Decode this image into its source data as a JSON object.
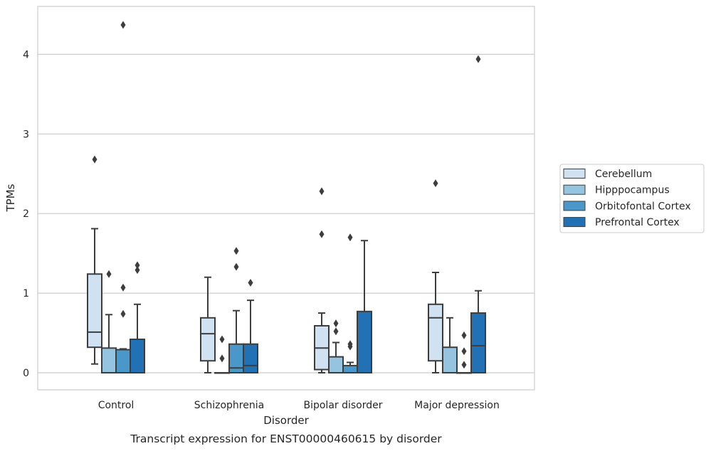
{
  "chart_data": {
    "type": "box",
    "caption": "Transcript expression for ENST00000460615 by disorder",
    "xlabel": "Disorder",
    "ylabel": "TPMs",
    "ylim": [
      -0.2,
      4.6
    ],
    "yticks": [
      "0",
      "1",
      "2",
      "3",
      "4"
    ],
    "ytick_values": [
      0,
      1,
      2,
      3,
      4
    ],
    "grid": "horizontal",
    "legend_position": "right",
    "categories": [
      "Control",
      "Schizophrenia",
      "Bipolar disorder",
      "Major depression"
    ],
    "series": [
      {
        "name": "Cerebellum",
        "color": "#d0e1f2",
        "boxes": [
          {
            "whislo": 0.11,
            "q1": 0.32,
            "med": 0.51,
            "q3": 1.24,
            "whishi": 1.81,
            "fliers": [
              2.68
            ]
          },
          {
            "whislo": 0.0,
            "q1": 0.15,
            "med": 0.49,
            "q3": 0.69,
            "whishi": 1.2,
            "fliers": []
          },
          {
            "whislo": 0.0,
            "q1": 0.04,
            "med": 0.31,
            "q3": 0.59,
            "whishi": 0.75,
            "fliers": [
              1.74,
              2.28
            ]
          },
          {
            "whislo": 0.0,
            "q1": 0.15,
            "med": 0.69,
            "q3": 0.86,
            "whishi": 1.26,
            "fliers": [
              2.38
            ]
          }
        ]
      },
      {
        "name": "Hipppocampus",
        "color": "#94c4df",
        "boxes": [
          {
            "whislo": 0.0,
            "q1": 0.0,
            "med": 0.0,
            "q3": 0.31,
            "whishi": 0.73,
            "fliers": [
              1.24
            ]
          },
          {
            "whislo": 0.0,
            "q1": 0.0,
            "med": 0.0,
            "q3": 0.0,
            "whishi": 0.0,
            "fliers": [
              0.18,
              0.42
            ]
          },
          {
            "whislo": 0.0,
            "q1": 0.0,
            "med": 0.0,
            "q3": 0.2,
            "whishi": 0.38,
            "fliers": [
              0.52,
              0.62
            ]
          },
          {
            "whislo": 0.0,
            "q1": 0.0,
            "med": 0.0,
            "q3": 0.32,
            "whishi": 0.69,
            "fliers": []
          }
        ]
      },
      {
        "name": "Orbitofontal Cortex",
        "color": "#4a98c9",
        "boxes": [
          {
            "whislo": 0.0,
            "q1": 0.0,
            "med": 0.0,
            "q3": 0.29,
            "whishi": 0.3,
            "fliers": [
              0.74,
              1.07,
              4.37
            ]
          },
          {
            "whislo": 0.0,
            "q1": 0.0,
            "med": 0.06,
            "q3": 0.36,
            "whishi": 0.78,
            "fliers": [
              1.33,
              1.53
            ]
          },
          {
            "whislo": 0.0,
            "q1": 0.0,
            "med": 0.0,
            "q3": 0.09,
            "whishi": 0.13,
            "fliers": [
              0.33,
              0.36,
              1.7
            ]
          },
          {
            "whislo": 0.0,
            "q1": 0.0,
            "med": 0.0,
            "q3": 0.0,
            "whishi": 0.0,
            "fliers": [
              0.1,
              0.27,
              0.47
            ]
          }
        ]
      },
      {
        "name": "Prefrontal Cortex",
        "color": "#2271b5",
        "boxes": [
          {
            "whislo": 0.0,
            "q1": 0.0,
            "med": 0.0,
            "q3": 0.42,
            "whishi": 0.86,
            "fliers": [
              1.29,
              1.35
            ]
          },
          {
            "whislo": 0.0,
            "q1": 0.0,
            "med": 0.09,
            "q3": 0.36,
            "whishi": 0.91,
            "fliers": [
              1.13
            ]
          },
          {
            "whislo": 0.0,
            "q1": 0.0,
            "med": 0.0,
            "q3": 0.77,
            "whishi": 1.66,
            "fliers": []
          },
          {
            "whislo": 0.0,
            "q1": 0.0,
            "med": 0.34,
            "q3": 0.75,
            "whishi": 1.03,
            "fliers": [
              3.94
            ]
          }
        ]
      }
    ]
  }
}
